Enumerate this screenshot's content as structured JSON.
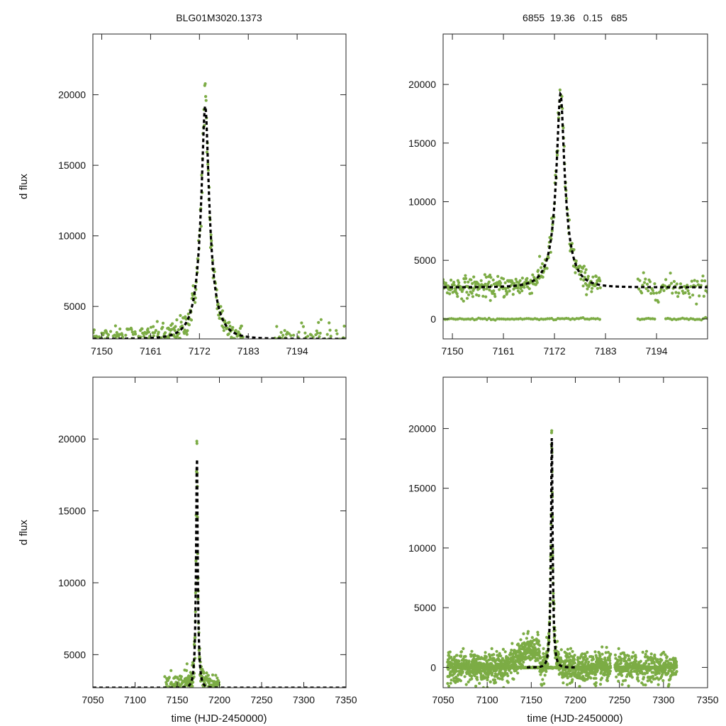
{
  "figure": {
    "title_left": "BLG01M3020.1373",
    "title_right": "6855  19.36   0.15   685",
    "point_color": "#7cac45",
    "fit_color": "#000000"
  },
  "chart_data": [
    {
      "id": "top-left",
      "type": "scatter",
      "title": "BLG01M3020.1373",
      "xlabel": "",
      "ylabel": "d flux",
      "xlim": [
        7148,
        7205
      ],
      "ylim": [
        2700,
        24300
      ],
      "xticks": [
        7150,
        7161,
        7172,
        7183,
        7194
      ],
      "yticks": [
        5000,
        10000,
        15000,
        20000
      ],
      "fit_model": {
        "t0": 7173.3,
        "u0": 0.2,
        "tE": 4.0,
        "baseline": 2700,
        "amplitude": 16500
      },
      "data_segments": [
        {
          "x_start": 7148,
          "x_end": 7182,
          "step": 0.1,
          "scatter": 450,
          "zero_mask": false
        },
        {
          "x_start": 7189,
          "x_end": 7205,
          "step": 0.2,
          "scatter": 500,
          "zero_mask": false
        }
      ]
    },
    {
      "id": "top-right",
      "type": "scatter",
      "title": "6855  19.36   0.15   685",
      "xlabel": "",
      "ylabel": "",
      "xlim": [
        7148,
        7205
      ],
      "ylim": [
        -1700,
        24300
      ],
      "xticks": [
        7150,
        7161,
        7172,
        7183,
        7194
      ],
      "yticks": [
        0,
        5000,
        10000,
        15000,
        20000
      ],
      "fit_model": {
        "t0": 7173.3,
        "u0": 0.2,
        "tE": 4.0,
        "baseline": 2700,
        "amplitude": 16500
      },
      "zero_line_ranges": [
        [
          7148,
          7182
        ],
        [
          7190,
          7194
        ],
        [
          7196,
          7205
        ]
      ],
      "data_segments": [
        {
          "x_start": 7148,
          "x_end": 7182,
          "step": 0.1,
          "scatter": 450,
          "zero_mask": false
        },
        {
          "x_start": 7190,
          "x_end": 7205,
          "step": 0.2,
          "scatter": 500,
          "zero_mask": false
        }
      ]
    },
    {
      "id": "bottom-left",
      "type": "scatter",
      "title": "",
      "xlabel": "time (HJD-2450000)",
      "ylabel": "d flux",
      "xlim": [
        7050,
        7350
      ],
      "ylim": [
        2700,
        24300
      ],
      "xticks": [
        7050,
        7100,
        7150,
        7200,
        7250,
        7300,
        7350
      ],
      "yticks": [
        5000,
        10000,
        15000,
        20000
      ],
      "fit_model": {
        "t0": 7173.3,
        "u0": 0.2,
        "tE": 4.0,
        "baseline": 2700,
        "amplitude": 16500
      },
      "data_segments": [
        {
          "x_start": 7135,
          "x_end": 7200,
          "step": 0.2,
          "scatter": 500,
          "zero_mask": false
        }
      ]
    },
    {
      "id": "bottom-right",
      "type": "scatter",
      "title": "",
      "xlabel": "time (HJD-2450000)",
      "ylabel": "",
      "xlim": [
        7050,
        7350
      ],
      "ylim": [
        -1700,
        24300
      ],
      "xticks": [
        7050,
        7100,
        7150,
        7200,
        7250,
        7300,
        7350
      ],
      "yticks": [
        0,
        5000,
        10000,
        15000,
        20000
      ],
      "fit_model": {
        "t0": 7173.3,
        "u0": 0.2,
        "tE": 4.0,
        "baseline": 0,
        "amplitude": 19200
      },
      "fit_range": [
        7145,
        7200
      ],
      "zero_line_ranges": [
        [
          7055,
          7240
        ],
        [
          7245,
          7315
        ]
      ],
      "data_segments": [
        {
          "x_start": 7055,
          "x_end": 7240,
          "step": 0.15,
          "scatter": 600,
          "zero_mask": false
        },
        {
          "x_start": 7245,
          "x_end": 7315,
          "step": 0.2,
          "scatter": 600,
          "zero_mask": false
        }
      ]
    }
  ]
}
